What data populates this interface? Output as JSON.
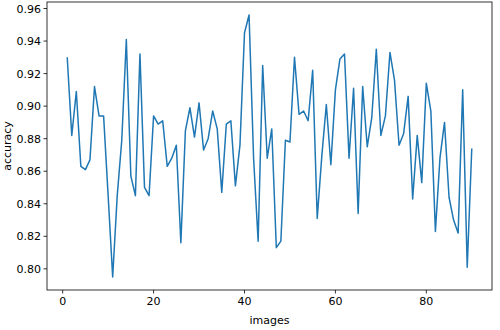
{
  "chart_data": {
    "type": "line",
    "x_label": "images",
    "y_label": "accuracy",
    "color": "#1f77b4",
    "x": [
      1,
      2,
      3,
      4,
      5,
      6,
      7,
      8,
      9,
      10,
      11,
      12,
      13,
      14,
      15,
      16,
      17,
      18,
      19,
      20,
      21,
      22,
      23,
      24,
      25,
      26,
      27,
      28,
      29,
      30,
      31,
      32,
      33,
      34,
      35,
      36,
      37,
      38,
      39,
      40,
      41,
      42,
      43,
      44,
      45,
      46,
      47,
      48,
      49,
      50,
      51,
      52,
      53,
      54,
      55,
      56,
      57,
      58,
      59,
      60,
      61,
      62,
      63,
      64,
      65,
      66,
      67,
      68,
      69,
      70,
      71,
      72,
      73,
      74,
      75,
      76,
      77,
      78,
      79,
      80,
      81,
      82,
      83,
      84,
      85,
      86,
      87,
      88,
      89,
      90
    ],
    "values": [
      0.93,
      0.882,
      0.909,
      0.863,
      0.861,
      0.867,
      0.912,
      0.894,
      0.894,
      0.845,
      0.795,
      0.845,
      0.879,
      0.941,
      0.857,
      0.845,
      0.932,
      0.85,
      0.845,
      0.894,
      0.889,
      0.891,
      0.863,
      0.868,
      0.876,
      0.816,
      0.885,
      0.899,
      0.881,
      0.902,
      0.873,
      0.88,
      0.897,
      0.886,
      0.847,
      0.889,
      0.891,
      0.851,
      0.876,
      0.945,
      0.956,
      0.868,
      0.817,
      0.925,
      0.868,
      0.886,
      0.813,
      0.817,
      0.879,
      0.878,
      0.93,
      0.895,
      0.897,
      0.891,
      0.922,
      0.831,
      0.869,
      0.901,
      0.864,
      0.91,
      0.929,
      0.932,
      0.868,
      0.911,
      0.834,
      0.912,
      0.875,
      0.893,
      0.935,
      0.882,
      0.894,
      0.933,
      0.916,
      0.876,
      0.883,
      0.906,
      0.843,
      0.882,
      0.853,
      0.914,
      0.897,
      0.823,
      0.868,
      0.89,
      0.844,
      0.83,
      0.822,
      0.91,
      0.801,
      0.874
    ],
    "xlim": [
      -3.45,
      94.45
    ],
    "xticks": [
      0,
      20,
      40,
      60,
      80
    ],
    "ylim": [
      0.787,
      0.964
    ],
    "yticks": [
      {
        "value": 0.8,
        "label": "0.80"
      },
      {
        "value": 0.82,
        "label": "0.82"
      },
      {
        "value": 0.84,
        "label": "0.84"
      },
      {
        "value": 0.86,
        "label": "0.86"
      },
      {
        "value": 0.88,
        "label": "0.88"
      },
      {
        "value": 0.9,
        "label": "0.90"
      },
      {
        "value": 0.92,
        "label": "0.92"
      },
      {
        "value": 0.94,
        "label": "0.94"
      },
      {
        "value": 0.96,
        "label": "0.96"
      }
    ],
    "grid": false
  }
}
